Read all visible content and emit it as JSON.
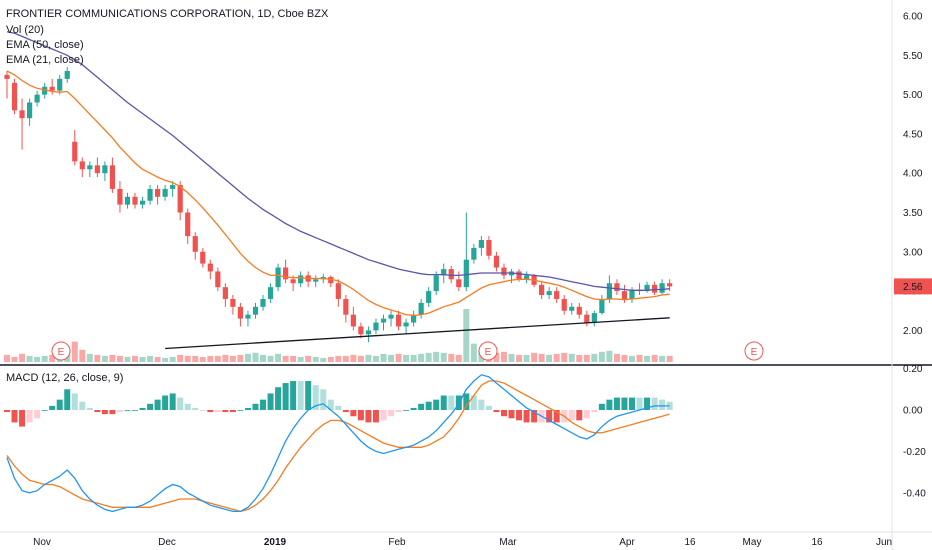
{
  "header": {
    "title": "FRONTIER COMMUNICATIONS CORPORATION, 1D, Cboe BZX",
    "indicators": [
      "Vol (20)",
      "EMA (50, close)",
      "EMA (21, close)"
    ],
    "macd_label": "MACD (12, 26, close, 9)"
  },
  "colors": {
    "up": "#26a69a",
    "down": "#ef5350",
    "vol_up": "#a5d6c8",
    "vol_down": "#f7a9a7",
    "ema50": "#5b55a8",
    "ema21": "#f57c20",
    "macd_line": "#2196f3",
    "signal_line": "#f57c20",
    "hist_up_strong": "#26a69a",
    "hist_up_weak": "#b2dfdb",
    "hist_down_strong": "#ef5350",
    "hist_down_weak": "#ffcdd2",
    "trendline": "#131722",
    "price_tag": "#ef5350"
  },
  "price_axis": {
    "ticks": [
      "6.00",
      "5.50",
      "5.00",
      "4.50",
      "4.00",
      "3.50",
      "3.00",
      "2.50",
      "2.00"
    ],
    "last_price": "2.56"
  },
  "macd_axis": {
    "ticks": [
      "0.20",
      "0.00",
      "-0.20",
      "-0.40"
    ]
  },
  "time_axis": {
    "labels": [
      "Nov",
      "Dec",
      "2019",
      "Feb",
      "Mar",
      "Apr",
      "16",
      "May",
      "16",
      "Jun"
    ]
  },
  "earnings_markers": [
    "E",
    "E",
    "E"
  ],
  "chart_data": {
    "type": "candlestick",
    "title": "FRONTIER COMMUNICATIONS CORPORATION, 1D, Cboe BZX",
    "ylim": [
      1.6,
      6.1
    ],
    "candles": [
      [
        5.25,
        5.3,
        4.95,
        5.2
      ],
      [
        5.15,
        5.2,
        4.75,
        4.8
      ],
      [
        4.8,
        4.95,
        4.3,
        4.7
      ],
      [
        4.7,
        4.95,
        4.6,
        4.9
      ],
      [
        4.9,
        5.05,
        4.85,
        5.0
      ],
      [
        5.0,
        5.15,
        4.95,
        5.1
      ],
      [
        5.1,
        5.2,
        5.0,
        5.05
      ],
      [
        5.05,
        5.25,
        5.0,
        5.2
      ],
      [
        5.2,
        5.35,
        5.15,
        5.3
      ],
      [
        4.4,
        4.55,
        4.1,
        4.15
      ],
      [
        4.15,
        4.2,
        3.95,
        4.05
      ],
      [
        4.05,
        4.15,
        3.95,
        4.1
      ],
      [
        4.1,
        4.2,
        3.95,
        4.0
      ],
      [
        4.0,
        4.15,
        3.9,
        4.1
      ],
      [
        4.1,
        4.2,
        3.75,
        3.8
      ],
      [
        3.8,
        3.9,
        3.5,
        3.6
      ],
      [
        3.6,
        3.75,
        3.55,
        3.7
      ],
      [
        3.7,
        3.75,
        3.55,
        3.6
      ],
      [
        3.6,
        3.7,
        3.55,
        3.65
      ],
      [
        3.65,
        3.85,
        3.6,
        3.8
      ],
      [
        3.8,
        3.85,
        3.6,
        3.7
      ],
      [
        3.7,
        3.85,
        3.65,
        3.8
      ],
      [
        3.8,
        3.9,
        3.7,
        3.85
      ],
      [
        3.85,
        3.9,
        3.4,
        3.5
      ],
      [
        3.5,
        3.55,
        3.1,
        3.2
      ],
      [
        3.2,
        3.25,
        2.9,
        3.0
      ],
      [
        3.0,
        3.05,
        2.8,
        2.85
      ],
      [
        2.85,
        2.9,
        2.65,
        2.75
      ],
      [
        2.75,
        2.8,
        2.5,
        2.55
      ],
      [
        2.55,
        2.6,
        2.3,
        2.4
      ],
      [
        2.4,
        2.45,
        2.2,
        2.3
      ],
      [
        2.3,
        2.35,
        2.05,
        2.15
      ],
      [
        2.15,
        2.25,
        2.05,
        2.2
      ],
      [
        2.2,
        2.35,
        2.15,
        2.3
      ],
      [
        2.3,
        2.45,
        2.25,
        2.4
      ],
      [
        2.4,
        2.6,
        2.35,
        2.55
      ],
      [
        2.55,
        2.85,
        2.5,
        2.8
      ],
      [
        2.8,
        2.9,
        2.6,
        2.65
      ],
      [
        2.65,
        2.7,
        2.5,
        2.6
      ],
      [
        2.6,
        2.75,
        2.55,
        2.7
      ],
      [
        2.7,
        2.75,
        2.55,
        2.62
      ],
      [
        2.62,
        2.7,
        2.55,
        2.65
      ],
      [
        2.65,
        2.72,
        2.6,
        2.68
      ],
      [
        2.68,
        2.7,
        2.55,
        2.6
      ],
      [
        2.6,
        2.65,
        2.3,
        2.4
      ],
      [
        2.4,
        2.45,
        2.1,
        2.2
      ],
      [
        2.2,
        2.3,
        2.0,
        2.05
      ],
      [
        2.05,
        2.1,
        1.9,
        1.95
      ],
      [
        1.95,
        2.05,
        1.85,
        2.0
      ],
      [
        2.0,
        2.15,
        1.95,
        2.1
      ],
      [
        2.1,
        2.2,
        2.0,
        2.15
      ],
      [
        2.15,
        2.25,
        2.05,
        2.2
      ],
      [
        2.2,
        2.25,
        2.0,
        2.05
      ],
      [
        2.05,
        2.15,
        1.95,
        2.1
      ],
      [
        2.1,
        2.25,
        2.05,
        2.2
      ],
      [
        2.2,
        2.4,
        2.15,
        2.35
      ],
      [
        2.35,
        2.55,
        2.3,
        2.5
      ],
      [
        2.5,
        2.75,
        2.45,
        2.7
      ],
      [
        2.7,
        2.85,
        2.6,
        2.78
      ],
      [
        2.78,
        2.82,
        2.6,
        2.65
      ],
      [
        2.65,
        2.75,
        2.5,
        2.55
      ],
      [
        2.55,
        3.5,
        2.5,
        2.9
      ],
      [
        2.9,
        3.1,
        2.85,
        3.05
      ],
      [
        3.05,
        3.2,
        2.95,
        3.15
      ],
      [
        3.15,
        3.2,
        2.9,
        2.95
      ],
      [
        2.95,
        3.0,
        2.75,
        2.8
      ],
      [
        2.8,
        2.85,
        2.65,
        2.7
      ],
      [
        2.7,
        2.78,
        2.6,
        2.75
      ],
      [
        2.75,
        2.78,
        2.62,
        2.65
      ],
      [
        2.65,
        2.75,
        2.6,
        2.7
      ],
      [
        2.7,
        2.72,
        2.55,
        2.58
      ],
      [
        2.58,
        2.62,
        2.4,
        2.45
      ],
      [
        2.45,
        2.55,
        2.4,
        2.5
      ],
      [
        2.5,
        2.55,
        2.35,
        2.4
      ],
      [
        2.4,
        2.45,
        2.2,
        2.25
      ],
      [
        2.25,
        2.35,
        2.2,
        2.3
      ],
      [
        2.3,
        2.35,
        2.15,
        2.2
      ],
      [
        2.2,
        2.25,
        2.05,
        2.1
      ],
      [
        2.1,
        2.25,
        2.05,
        2.22
      ],
      [
        2.22,
        2.45,
        2.2,
        2.4
      ],
      [
        2.4,
        2.7,
        2.35,
        2.6
      ],
      [
        2.6,
        2.65,
        2.45,
        2.5
      ],
      [
        2.5,
        2.58,
        2.35,
        2.4
      ],
      [
        2.4,
        2.55,
        2.35,
        2.52
      ],
      [
        2.52,
        2.6,
        2.45,
        2.5
      ],
      [
        2.5,
        2.62,
        2.48,
        2.58
      ],
      [
        2.58,
        2.62,
        2.45,
        2.48
      ],
      [
        2.48,
        2.65,
        2.45,
        2.6
      ],
      [
        2.6,
        2.65,
        2.5,
        2.56
      ]
    ],
    "ema50": [
      5.8,
      5.78,
      5.74,
      5.7,
      5.66,
      5.62,
      5.58,
      5.54,
      5.5,
      5.44,
      5.38,
      5.3,
      5.22,
      5.14,
      5.06,
      4.98,
      4.9,
      4.83,
      4.76,
      4.69,
      4.62,
      4.55,
      4.48,
      4.4,
      4.32,
      4.24,
      4.16,
      4.08,
      4.0,
      3.92,
      3.84,
      3.76,
      3.68,
      3.61,
      3.54,
      3.48,
      3.42,
      3.36,
      3.31,
      3.26,
      3.22,
      3.18,
      3.14,
      3.1,
      3.06,
      3.02,
      2.98,
      2.94,
      2.9,
      2.87,
      2.84,
      2.81,
      2.78,
      2.76,
      2.74,
      2.72,
      2.71,
      2.71,
      2.71,
      2.7,
      2.7,
      2.71,
      2.72,
      2.73,
      2.73,
      2.73,
      2.73,
      2.73,
      2.72,
      2.71,
      2.7,
      2.69,
      2.68,
      2.66,
      2.64,
      2.62,
      2.6,
      2.58,
      2.56,
      2.55,
      2.54,
      2.53,
      2.52,
      2.51,
      2.51,
      2.51,
      2.52,
      2.52,
      2.53
    ],
    "ema21": [
      5.3,
      5.25,
      5.18,
      5.12,
      5.08,
      5.06,
      5.04,
      5.03,
      5.04,
      4.95,
      4.85,
      4.75,
      4.65,
      4.55,
      4.45,
      4.33,
      4.23,
      4.13,
      4.05,
      4.0,
      3.95,
      3.91,
      3.88,
      3.83,
      3.75,
      3.66,
      3.56,
      3.45,
      3.34,
      3.22,
      3.1,
      2.98,
      2.88,
      2.8,
      2.74,
      2.7,
      2.7,
      2.68,
      2.67,
      2.67,
      2.66,
      2.66,
      2.66,
      2.65,
      2.63,
      2.58,
      2.52,
      2.45,
      2.38,
      2.33,
      2.29,
      2.26,
      2.23,
      2.2,
      2.19,
      2.2,
      2.22,
      2.26,
      2.3,
      2.33,
      2.36,
      2.42,
      2.48,
      2.54,
      2.58,
      2.6,
      2.62,
      2.64,
      2.65,
      2.65,
      2.64,
      2.62,
      2.6,
      2.58,
      2.55,
      2.51,
      2.47,
      2.43,
      2.4,
      2.39,
      2.4,
      2.4,
      2.39,
      2.4,
      2.41,
      2.42,
      2.43,
      2.45,
      2.46
    ],
    "macd": [
      -0.23,
      -0.33,
      -0.39,
      -0.4,
      -0.39,
      -0.36,
      -0.34,
      -0.32,
      -0.29,
      -0.33,
      -0.39,
      -0.43,
      -0.46,
      -0.48,
      -0.49,
      -0.48,
      -0.47,
      -0.47,
      -0.46,
      -0.44,
      -0.41,
      -0.38,
      -0.36,
      -0.37,
      -0.4,
      -0.42,
      -0.44,
      -0.46,
      -0.47,
      -0.48,
      -0.49,
      -0.49,
      -0.47,
      -0.43,
      -0.38,
      -0.31,
      -0.23,
      -0.15,
      -0.09,
      -0.04,
      0.0,
      0.02,
      0.03,
      0.0,
      -0.03,
      -0.07,
      -0.11,
      -0.15,
      -0.18,
      -0.2,
      -0.21,
      -0.2,
      -0.19,
      -0.18,
      -0.17,
      -0.15,
      -0.13,
      -0.1,
      -0.06,
      -0.02,
      0.03,
      0.1,
      0.14,
      0.17,
      0.16,
      0.13,
      0.1,
      0.07,
      0.04,
      0.01,
      -0.01,
      -0.03,
      -0.05,
      -0.07,
      -0.09,
      -0.11,
      -0.13,
      -0.14,
      -0.12,
      -0.08,
      -0.05,
      -0.03,
      -0.02,
      -0.01,
      0.0,
      0.01,
      0.02,
      0.02,
      0.02
    ],
    "signal": [
      -0.22,
      -0.27,
      -0.31,
      -0.34,
      -0.35,
      -0.36,
      -0.36,
      -0.37,
      -0.39,
      -0.41,
      -0.43,
      -0.44,
      -0.45,
      -0.46,
      -0.47,
      -0.47,
      -0.47,
      -0.47,
      -0.47,
      -0.47,
      -0.46,
      -0.45,
      -0.44,
      -0.43,
      -0.43,
      -0.43,
      -0.44,
      -0.45,
      -0.46,
      -0.47,
      -0.48,
      -0.49,
      -0.48,
      -0.46,
      -0.43,
      -0.39,
      -0.34,
      -0.28,
      -0.23,
      -0.18,
      -0.14,
      -0.1,
      -0.07,
      -0.05,
      -0.05,
      -0.06,
      -0.08,
      -0.1,
      -0.12,
      -0.14,
      -0.16,
      -0.17,
      -0.18,
      -0.18,
      -0.18,
      -0.18,
      -0.17,
      -0.15,
      -0.13,
      -0.09,
      -0.04,
      0.02,
      0.07,
      0.12,
      0.14,
      0.14,
      0.13,
      0.11,
      0.09,
      0.07,
      0.05,
      0.03,
      0.01,
      -0.01,
      -0.03,
      -0.06,
      -0.08,
      -0.1,
      -0.11,
      -0.11,
      -0.1,
      -0.09,
      -0.08,
      -0.07,
      -0.06,
      -0.05,
      -0.04,
      -0.03,
      -0.02
    ],
    "volume": [
      0.35,
      0.25,
      0.4,
      0.3,
      0.25,
      0.3,
      0.35,
      0.4,
      0.5,
      1.0,
      0.6,
      0.4,
      0.35,
      0.3,
      0.35,
      0.3,
      0.25,
      0.3,
      0.25,
      0.3,
      0.25,
      0.2,
      0.25,
      0.35,
      0.3,
      0.3,
      0.25,
      0.3,
      0.3,
      0.35,
      0.3,
      0.35,
      0.4,
      0.45,
      0.35,
      0.3,
      0.4,
      0.3,
      0.3,
      0.25,
      0.3,
      0.25,
      0.2,
      0.25,
      0.3,
      0.3,
      0.35,
      0.3,
      0.35,
      0.3,
      0.4,
      0.35,
      0.4,
      0.35,
      0.35,
      0.4,
      0.45,
      0.5,
      0.45,
      0.4,
      0.35,
      2.6,
      0.9,
      0.6,
      0.5,
      0.45,
      0.5,
      0.4,
      0.35,
      0.35,
      0.45,
      0.4,
      0.35,
      0.4,
      0.45,
      0.4,
      0.35,
      0.35,
      0.4,
      0.5,
      0.55,
      0.4,
      0.35,
      0.3,
      0.35,
      0.3,
      0.35,
      0.3,
      0.3
    ],
    "trendline": [
      [
        21.0,
        1.77
      ],
      [
        88.0,
        2.16
      ]
    ]
  }
}
